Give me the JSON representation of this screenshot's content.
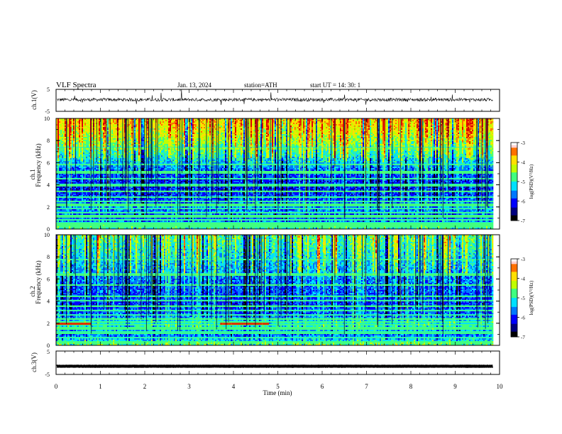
{
  "header": {
    "title": "VLF  Spectra",
    "date": "Jan. 13, 2024",
    "station": "station=ATH",
    "start": "start  UT  =    14: 30: 1"
  },
  "colors": {
    "spectrum_cmap": [
      "#000000",
      "#00007f",
      "#0000ff",
      "#0078ff",
      "#00e0ff",
      "#40ff80",
      "#c0ff00",
      "#ffe000",
      "#ff7000",
      "#e00000",
      "#ffffff"
    ],
    "trace": "#000000"
  },
  "chart_data": [
    {
      "type": "line",
      "panel": "ch1-waveform",
      "ylabel": "ch.1(V)",
      "ylim": [
        -5,
        5
      ],
      "yticks": [
        "5",
        "-5"
      ],
      "xlim": [
        0,
        10
      ],
      "baseline_v": 0.3,
      "noise_amplitude_v": 1.2,
      "end_time_min": 9.85
    },
    {
      "type": "heatmap",
      "panel": "ch1-spectrogram",
      "ylabel": "Frequency (kHz)",
      "channel_label": "ch.1",
      "ylim": [
        0,
        10
      ],
      "yticks": [
        "0",
        "2",
        "4",
        "6",
        "8",
        "10"
      ],
      "xlim": [
        0,
        10
      ],
      "end_time_min": 9.85,
      "level_profile": [
        [
          0,
          0.55
        ],
        [
          0.5,
          0.4
        ],
        [
          1.0,
          0.28
        ],
        [
          2.0,
          0.36
        ],
        [
          3.0,
          0.26
        ],
        [
          4.0,
          0.22
        ],
        [
          5.0,
          0.28
        ],
        [
          6.0,
          0.4
        ],
        [
          7.0,
          0.52
        ],
        [
          8.0,
          0.62
        ],
        [
          9.0,
          0.72
        ],
        [
          10.0,
          0.78
        ]
      ],
      "line_frequencies_khz": [
        0.3,
        0.6,
        0.9,
        1.25,
        1.55,
        1.9,
        2.25,
        2.55,
        2.95,
        3.45,
        4.05,
        4.6,
        5.2,
        5.9,
        7.4
      ],
      "colorbar": {
        "label": "log(PSD)(V²/Hz)",
        "range": [
          -7,
          -3
        ],
        "ticks": [
          "-3",
          "-4",
          "-5",
          "-6",
          "-7"
        ]
      }
    },
    {
      "type": "heatmap",
      "panel": "ch2-spectrogram",
      "ylabel": "Frequency (kHz)",
      "channel_label": "ch.2",
      "ylim": [
        0,
        10
      ],
      "yticks": [
        "0",
        "2",
        "4",
        "6",
        "8",
        "10"
      ],
      "xlim": [
        0,
        10
      ],
      "end_time_min": 9.85,
      "level_profile": [
        [
          0,
          0.6
        ],
        [
          0.5,
          0.45
        ],
        [
          1.0,
          0.32
        ],
        [
          2.0,
          0.5
        ],
        [
          2.6,
          0.36
        ],
        [
          3.0,
          0.3
        ],
        [
          4.0,
          0.26
        ],
        [
          5.0,
          0.3
        ],
        [
          6.0,
          0.34
        ],
        [
          7.0,
          0.4
        ],
        [
          8.0,
          0.45
        ],
        [
          9.0,
          0.5
        ],
        [
          10.0,
          0.55
        ]
      ],
      "line_frequencies_khz": [
        0.35,
        0.75,
        1.2,
        1.6,
        1.95,
        2.2,
        2.45,
        2.8,
        3.2,
        3.6,
        4.1,
        4.5,
        5.5,
        6.5,
        7.8
      ],
      "hot_segments": [
        {
          "t_start": 0.0,
          "t_end": 0.8,
          "f_khz": 1.95
        },
        {
          "t_start": 3.7,
          "t_end": 4.8,
          "f_khz": 1.95
        }
      ],
      "colorbar": {
        "label": "log(PSD)(V²/Hz)",
        "range": [
          -7,
          -3
        ],
        "ticks": [
          "-3",
          "-4",
          "-5",
          "-6",
          "-7"
        ]
      }
    },
    {
      "type": "line",
      "panel": "ch3-waveform",
      "ylabel": "ch.3(V)",
      "ylim": [
        -5,
        5
      ],
      "yticks": [
        "5",
        "-5"
      ],
      "xlim": [
        0,
        10
      ],
      "baseline_v": -1.5,
      "noise_amplitude_v": 0.1,
      "end_time_min": 9.85,
      "xlabel": "Time  (min)",
      "xticks": [
        "0",
        "1",
        "2",
        "3",
        "4",
        "5",
        "6",
        "7",
        "8",
        "9",
        "10"
      ]
    }
  ]
}
